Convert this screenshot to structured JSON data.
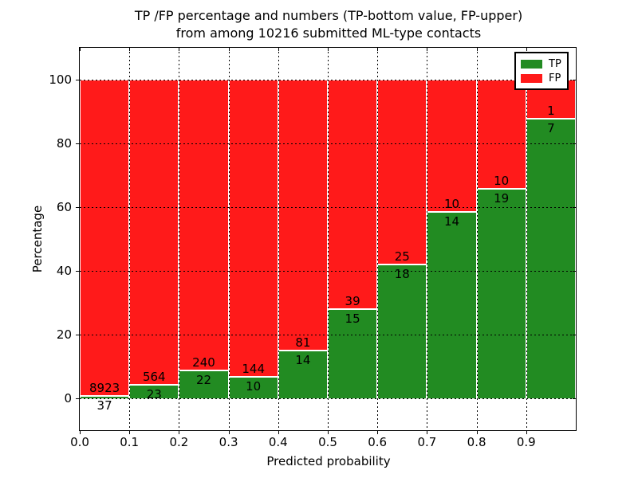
{
  "title": {
    "line1": "TP /FP percentage and numbers (TP-bottom value, FP-upper)",
    "line2": "from among 10216 submitted ML-type contacts"
  },
  "axes": {
    "xlabel": "Predicted probability",
    "ylabel": "Percentage",
    "xticks": [
      "0.0",
      "0.1",
      "0.2",
      "0.3",
      "0.4",
      "0.5",
      "0.6",
      "0.7",
      "0.8",
      "0.9"
    ],
    "yticks": [
      0,
      20,
      40,
      60,
      80,
      100
    ],
    "xlim": [
      0.0,
      1.0
    ],
    "ylim": [
      -10,
      110
    ],
    "grid": "dotted black"
  },
  "legend": {
    "position": "upper-right",
    "items": [
      {
        "label": "TP",
        "color": "#228b22"
      },
      {
        "label": "FP",
        "color": "#ff1a1a"
      }
    ]
  },
  "chart_data": {
    "type": "bar",
    "stacked": true,
    "normalized": "each bar totals 100 percent",
    "total_contacts": 10216,
    "bin_width": 0.1,
    "categories": [
      "0.0-0.1",
      "0.1-0.2",
      "0.2-0.3",
      "0.3-0.4",
      "0.4-0.5",
      "0.5-0.6",
      "0.6-0.7",
      "0.7-0.8",
      "0.8-0.9",
      "0.9-1.0"
    ],
    "series": [
      {
        "name": "TP",
        "color": "#228b22",
        "counts": [
          37,
          23,
          22,
          10,
          14,
          15,
          18,
          14,
          19,
          7
        ]
      },
      {
        "name": "FP",
        "color": "#ff1a1a",
        "counts": [
          8923,
          564,
          240,
          144,
          81,
          39,
          25,
          10,
          10,
          1
        ]
      }
    ],
    "tp_percent": [
      0.41,
      3.92,
      8.4,
      6.49,
      14.74,
      27.78,
      41.86,
      58.33,
      65.52,
      87.5
    ],
    "title": "TP /FP percentage and numbers (TP-bottom value, FP-upper) from among 10216 submitted ML-type contacts",
    "xlabel": "Predicted probability",
    "ylabel": "Percentage"
  }
}
